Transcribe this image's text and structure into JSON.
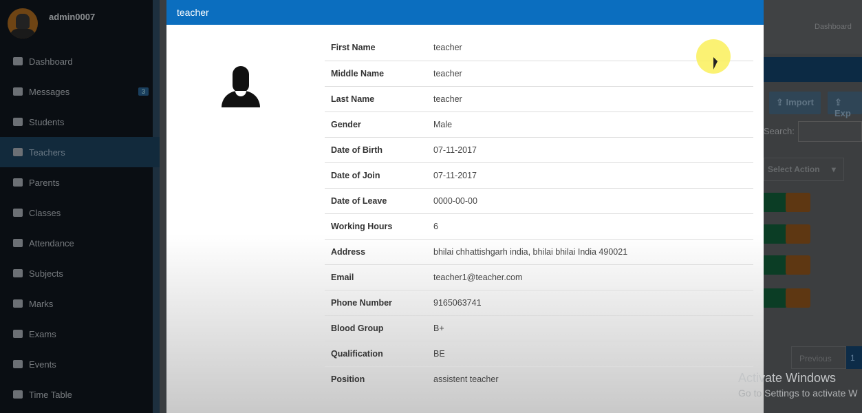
{
  "sidebar": {
    "username": "admin0007",
    "items": [
      {
        "label": "Dashboard"
      },
      {
        "label": "Messages",
        "badge": "3"
      },
      {
        "label": "Students"
      },
      {
        "label": "Teachers",
        "active": true
      },
      {
        "label": "Parents"
      },
      {
        "label": "Classes"
      },
      {
        "label": "Attendance"
      },
      {
        "label": "Subjects"
      },
      {
        "label": "Marks"
      },
      {
        "label": "Exams"
      },
      {
        "label": "Events"
      },
      {
        "label": "Time Table"
      }
    ]
  },
  "background": {
    "breadcrumb": "Dashboard",
    "import_label": "Import",
    "export_label": "Exp",
    "search_label": "Search:",
    "select_action": "Select Action",
    "previous": "Previous",
    "page": "1"
  },
  "modal": {
    "title": "teacher",
    "fields": [
      {
        "label": "First Name",
        "value": "teacher"
      },
      {
        "label": "Middle Name",
        "value": "teacher"
      },
      {
        "label": "Last Name",
        "value": "teacher"
      },
      {
        "label": "Gender",
        "value": "Male"
      },
      {
        "label": "Date of Birth",
        "value": "07-11-2017"
      },
      {
        "label": "Date of Join",
        "value": "07-11-2017"
      },
      {
        "label": "Date of Leave",
        "value": "0000-00-00"
      },
      {
        "label": "Working Hours",
        "value": "6"
      },
      {
        "label": "Address",
        "value": "bhilai chhattishgarh india, bhilai bhilai India 490021"
      },
      {
        "label": "Email",
        "value": "teacher1@teacher.com"
      },
      {
        "label": "Phone Number",
        "value": "9165063741"
      },
      {
        "label": "Blood Group",
        "value": "B+"
      },
      {
        "label": "Qualification",
        "value": "BE"
      },
      {
        "label": "Position",
        "value": "assistent teacher"
      }
    ]
  },
  "watermark": {
    "line1": "Activate Windows",
    "line2": "Go to Settings to activate W"
  },
  "colors": {
    "header": "#0b6ebf",
    "sidebar": "#0a0e13"
  }
}
